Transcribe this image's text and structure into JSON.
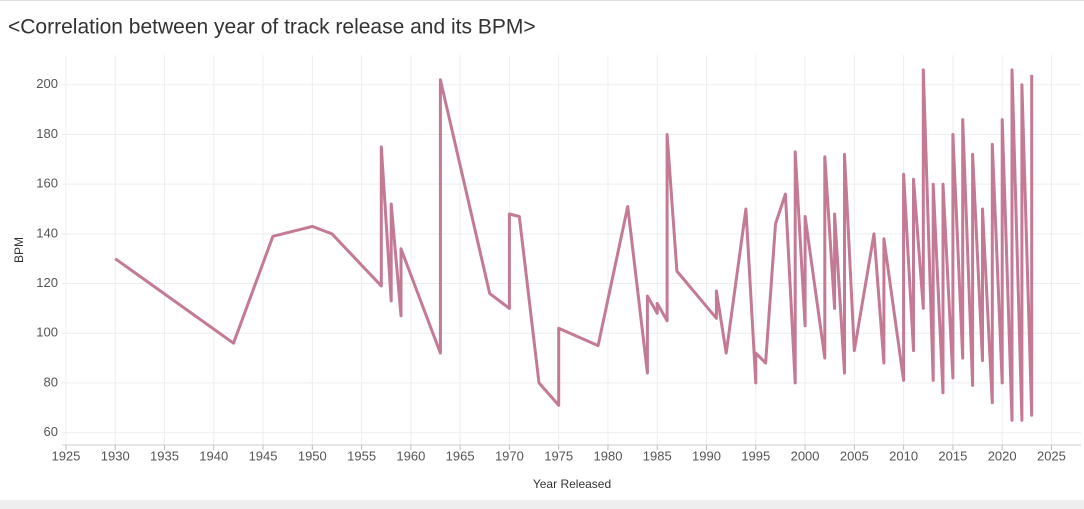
{
  "chart_data": {
    "type": "line",
    "title": "<Correlation between year of track release and its BPM>",
    "x_label": "Year Released",
    "y_label": "BPM",
    "color": "#c47a95",
    "grid": true,
    "x": [
      1930,
      1942,
      1946,
      1950,
      1952,
      1957,
      1957,
      1958,
      1958,
      1959,
      1959,
      1963,
      1963,
      1968,
      1970,
      1970,
      1971,
      1973,
      1975,
      1975,
      1979,
      1982,
      1984,
      1984,
      1985,
      1985,
      1986,
      1986,
      1987,
      1991,
      1991,
      1992,
      1994,
      1995,
      1995,
      1996,
      1997,
      1998,
      1999,
      1999,
      2000,
      2000,
      2002,
      2002,
      2003,
      2003,
      2004,
      2004,
      2005,
      2007,
      2008,
      2008,
      2010,
      2010,
      2011,
      2011,
      2012,
      2012,
      2013,
      2013,
      2014,
      2014,
      2015,
      2015,
      2016,
      2016,
      2017,
      2017,
      2018,
      2018,
      2019,
      2019,
      2020,
      2020,
      2021,
      2021,
      2022,
      2022,
      2023,
      2023
    ],
    "values": [
      130,
      96,
      139,
      143,
      140,
      119,
      175,
      113,
      152,
      107,
      134,
      92,
      202,
      116,
      110,
      148,
      147,
      80,
      71,
      102,
      95,
      151,
      84,
      115,
      108,
      112,
      105,
      180,
      125,
      106,
      117,
      92,
      150,
      80,
      92,
      88,
      144,
      156,
      80,
      173,
      103,
      147,
      90,
      171,
      110,
      148,
      84,
      172,
      93,
      140,
      88,
      138,
      81,
      164,
      93,
      162,
      110,
      206,
      81,
      160,
      76,
      160,
      82,
      180,
      90,
      186,
      79,
      172,
      89,
      150,
      72,
      176,
      80,
      186,
      65,
      206,
      65,
      200,
      67,
      204
    ],
    "xlim": [
      1924.6,
      2028
    ],
    "ylim": [
      55,
      212
    ],
    "xticks": [
      1925,
      1930,
      1935,
      1940,
      1945,
      1950,
      1955,
      1960,
      1965,
      1970,
      1975,
      1980,
      1985,
      1990,
      1995,
      2000,
      2005,
      2010,
      2015,
      2020,
      2025
    ],
    "yticks": [
      60,
      80,
      100,
      120,
      140,
      160,
      180,
      200
    ]
  }
}
